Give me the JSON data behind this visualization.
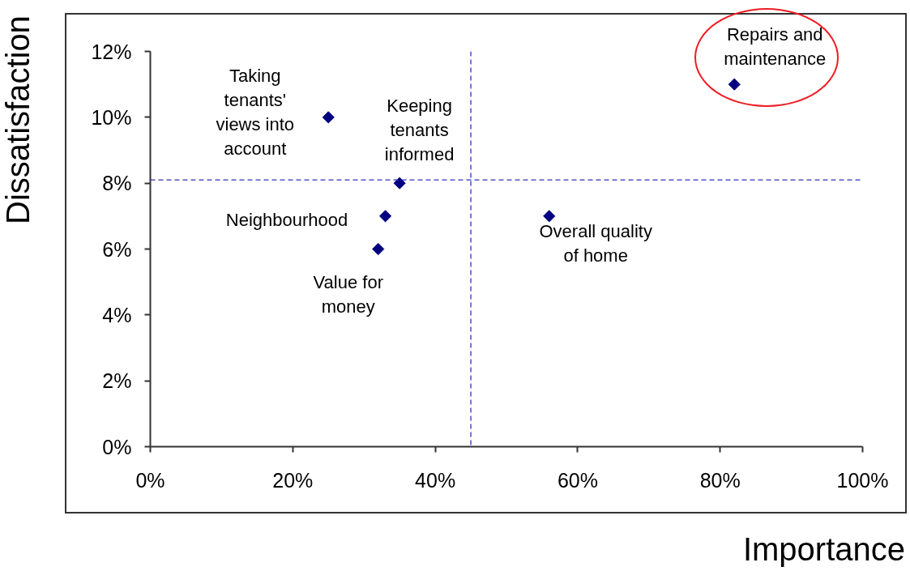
{
  "chart_data": {
    "type": "scatter",
    "xlabel": "Importance",
    "ylabel": "Dissatisfaction",
    "x": [
      25,
      35,
      33,
      32,
      56,
      82
    ],
    "values": [
      10,
      8,
      7,
      6,
      7,
      11
    ],
    "color": "#000080",
    "marker": "diamond",
    "xlim": [
      0,
      100
    ],
    "ylim": [
      0,
      12
    ],
    "xticks": [
      {
        "value": 0,
        "label": "0%"
      },
      {
        "value": 20,
        "label": "20%"
      },
      {
        "value": 40,
        "label": "40%"
      },
      {
        "value": 60,
        "label": "60%"
      },
      {
        "value": 80,
        "label": "80%"
      },
      {
        "value": 100,
        "label": "100%"
      }
    ],
    "yticks": [
      {
        "value": 0,
        "label": "0%"
      },
      {
        "value": 2,
        "label": "2%"
      },
      {
        "value": 4,
        "label": "4%"
      },
      {
        "value": 6,
        "label": "6%"
      },
      {
        "value": 8,
        "label": "8%"
      },
      {
        "value": 10,
        "label": "10%"
      },
      {
        "value": 12,
        "label": "12%"
      }
    ],
    "grid": false,
    "ref_lines": [
      {
        "axis": "x",
        "value": 45,
        "color": "#3030b8",
        "line_style": "dashed"
      },
      {
        "axis": "y",
        "value": 8.1,
        "color": "#3030b8",
        "line_style": "dashed"
      }
    ],
    "annotations": [
      {
        "text": "Taking\ntenants'\nviews into\naccount",
        "x": 25,
        "y": 10
      },
      {
        "text": "Keeping\ntenants\ninformed",
        "x": 35,
        "y": 8
      },
      {
        "text": "Neighbourhood",
        "x": 33,
        "y": 7
      },
      {
        "text": "Value for\nmoney",
        "x": 32,
        "y": 6
      },
      {
        "text": "Overall quality\nof home",
        "x": 56,
        "y": 7
      },
      {
        "text": "Repairs and\nmaintenance",
        "x": 82,
        "y": 11
      }
    ]
  }
}
